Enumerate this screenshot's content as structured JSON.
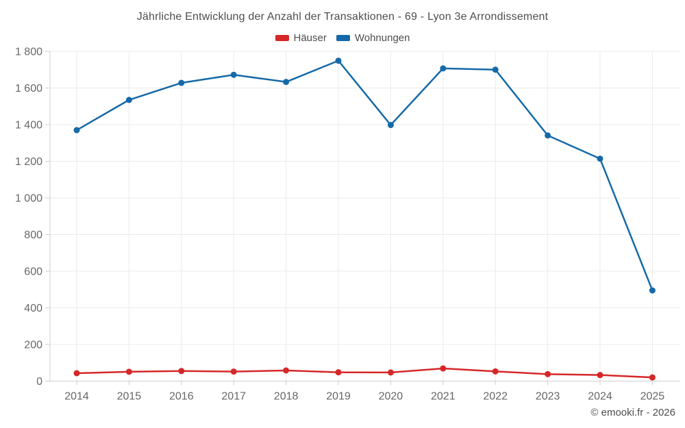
{
  "title": "Jährliche Entwicklung der Anzahl der Transaktionen - 69 - Lyon 3e Arrondissement",
  "footer_credit": "© emooki.fr - 2026",
  "legend": {
    "items": [
      {
        "label": "Häuser",
        "color": "#d62728"
      },
      {
        "label": "Wohnungen",
        "color": "#1569a8"
      }
    ]
  },
  "colors": {
    "haeuser_red": "#d62728",
    "wohnungen_blue": "#1569a8",
    "gridline": "#ebebeb",
    "axis_line": "#cfcfcf",
    "tick_text": "#666666",
    "title_text": "#4d4d4d"
  },
  "chart_data": {
    "type": "line",
    "title": "Jährliche Entwicklung der Anzahl der Transaktionen - 69 - Lyon 3e Arrondissement",
    "categories": [
      "2014",
      "2015",
      "2016",
      "2017",
      "2018",
      "2019",
      "2020",
      "2021",
      "2022",
      "2023",
      "2024",
      "2025"
    ],
    "series": [
      {
        "name": "Häuser",
        "color": "#d62728",
        "values": [
          43,
          51,
          55,
          52,
          58,
          48,
          47,
          69,
          53,
          38,
          33,
          20
        ]
      },
      {
        "name": "Wohnungen",
        "color": "#1569a8",
        "values": [
          1370,
          1535,
          1628,
          1672,
          1633,
          1749,
          1398,
          1707,
          1700,
          1341,
          1214,
          495
        ]
      }
    ],
    "xlabel": "",
    "ylabel": "",
    "ylim": [
      0,
      1800
    ],
    "ytick_step": 200,
    "ytick_labels": [
      "0",
      "200",
      "400",
      "600",
      "800",
      "1 000",
      "1 200",
      "1 400",
      "1 600",
      "1 800"
    ],
    "grid": true,
    "legend_position": "top"
  }
}
